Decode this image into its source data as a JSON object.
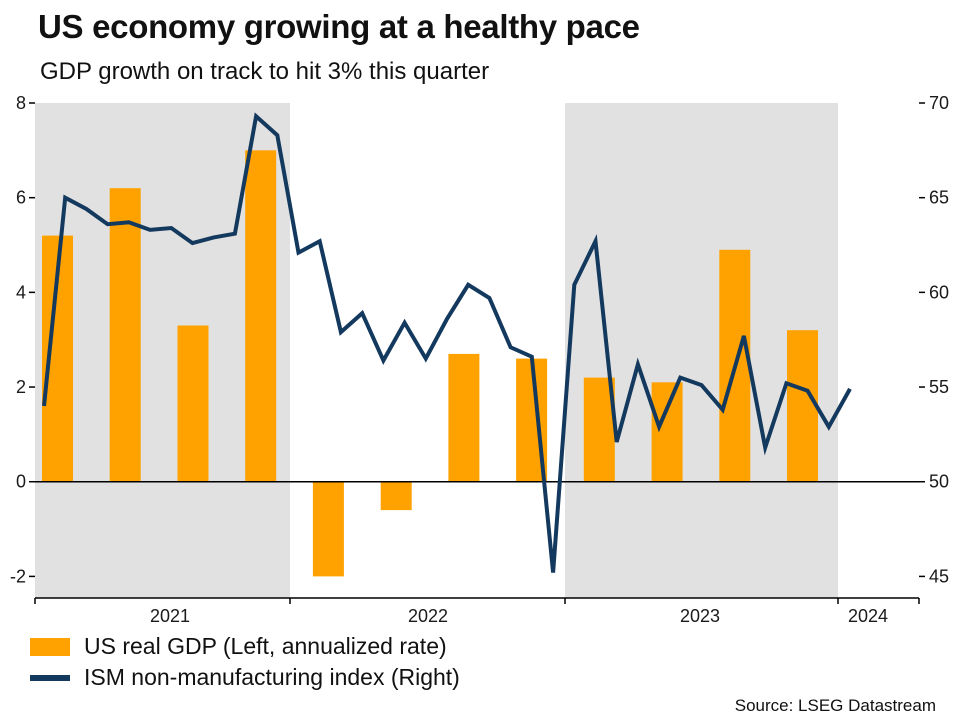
{
  "header": {
    "title": "US economy growing at a healthy pace",
    "subtitle": "GDP growth on track to hit 3% this quarter"
  },
  "source": "Source: LSEG Datastream",
  "chart_data": {
    "type": "combo-bar-line",
    "title": "US economy growing at a healthy pace",
    "subtitle": "GDP growth on track to hit 3% this quarter",
    "x_axis": {
      "year_labels": [
        "2021",
        "2022",
        "2023",
        "2024"
      ],
      "shaded_years": [
        "2021",
        "2023"
      ]
    },
    "left_axis": {
      "ticks": [
        8,
        6,
        4,
        2,
        0,
        -2
      ],
      "range": [
        -2.45,
        8
      ]
    },
    "right_axis": {
      "ticks": [
        70,
        65,
        60,
        55,
        50,
        45
      ],
      "range": [
        43.9,
        70
      ]
    },
    "plot": {
      "band_color": "#E1E1E1",
      "background": "#FFFFFF",
      "gridlines": false,
      "zero_line": true,
      "legend_position": "bottom-left"
    },
    "series": [
      {
        "name": "US real GDP (Left, annualized rate)",
        "type": "bar",
        "axis": "left",
        "color": "#FFA200",
        "frequency": "quarterly",
        "categories": [
          "2021 Q1",
          "2021 Q2",
          "2021 Q3",
          "2021 Q4",
          "2022 Q1",
          "2022 Q2",
          "2022 Q3",
          "2022 Q4",
          "2023 Q1",
          "2023 Q2",
          "2023 Q3",
          "2023 Q4"
        ],
        "values": [
          5.2,
          6.2,
          3.3,
          7.0,
          -2.0,
          -0.6,
          2.7,
          2.6,
          2.2,
          2.1,
          4.9,
          3.2
        ]
      },
      {
        "name": "ISM non-manufacturing index (Right)",
        "type": "line",
        "axis": "right",
        "color": "#14395E",
        "frequency": "monthly",
        "values": [
          54.0,
          65.0,
          64.4,
          63.6,
          63.7,
          63.3,
          63.4,
          62.6,
          62.9,
          63.1,
          69.3,
          68.3,
          62.1,
          62.7,
          57.9,
          58.9,
          56.4,
          58.4,
          56.5,
          58.6,
          60.4,
          59.7,
          57.1,
          56.6,
          45.2,
          60.4,
          62.7,
          52.1,
          56.2,
          52.9,
          55.5,
          55.1,
          53.8,
          57.7,
          51.8,
          55.2,
          54.8,
          52.9,
          54.9
        ]
      }
    ]
  }
}
